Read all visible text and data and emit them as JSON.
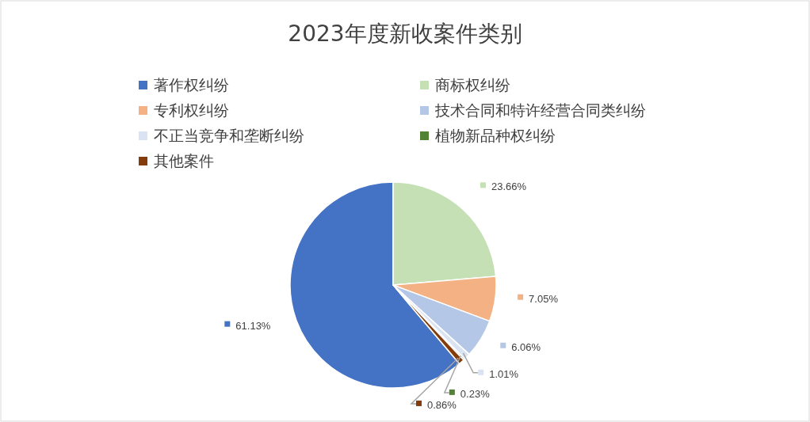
{
  "chart_data": {
    "type": "pie",
    "title": "2023年度新收案件类别",
    "categories": [
      "著作权纠纷",
      "商标权纠纷",
      "专利权纠纷",
      "技术合同和特许经营合同类纠纷",
      "不正当竞争和垄断纠纷",
      "植物新品种权纠纷",
      "其他案件"
    ],
    "values": [
      61.13,
      23.66,
      7.05,
      6.06,
      1.01,
      0.23,
      0.86
    ],
    "colors": [
      "#4472c4",
      "#c5e0b4",
      "#f4b183",
      "#b4c7e7",
      "#dae3f3",
      "#548235",
      "#843c0c"
    ],
    "value_labels": [
      "61.13%",
      "23.66%",
      "7.05%",
      "6.06%",
      "1.01%",
      "0.23%",
      "0.86%"
    ],
    "legend": "top"
  }
}
